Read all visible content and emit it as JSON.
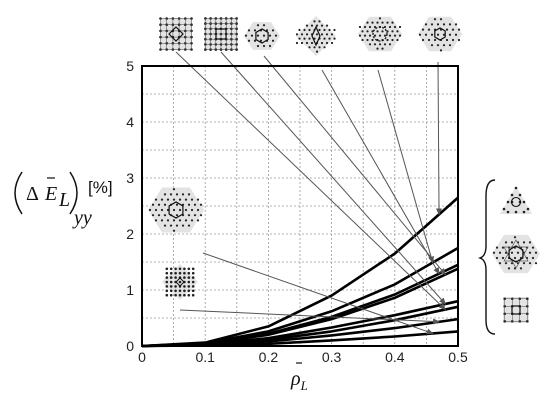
{
  "chart_data": {
    "type": "line",
    "xlabel": "ρ̄L",
    "ylabel": {
      "delta": "Δ",
      "E": "E",
      "sub": "L",
      "subsub": "yy",
      "unit": "[%]"
    },
    "xlim": [
      0,
      0.5
    ],
    "ylim": [
      0,
      5
    ],
    "x_ticks": [
      "0",
      "0.1",
      "0.2",
      "0.3",
      "0.4",
      "0.5"
    ],
    "y_ticks": [
      "0",
      "1",
      "2",
      "3",
      "4",
      "5"
    ],
    "grid": true,
    "x": [
      0,
      0.1,
      0.2,
      0.3,
      0.4,
      0.5
    ],
    "series": [
      {
        "values": [
          0,
          0.06,
          0.35,
          0.9,
          1.65,
          2.65
        ]
      },
      {
        "values": [
          0,
          0.05,
          0.26,
          0.62,
          1.1,
          1.75
        ]
      },
      {
        "values": [
          0,
          0.04,
          0.22,
          0.52,
          0.92,
          1.45
        ]
      },
      {
        "values": [
          0,
          0.04,
          0.2,
          0.48,
          0.86,
          1.38
        ]
      },
      {
        "values": [
          0,
          0.03,
          0.14,
          0.33,
          0.55,
          0.8
        ]
      },
      {
        "values": [
          0,
          0.02,
          0.11,
          0.26,
          0.46,
          0.7
        ]
      },
      {
        "values": [
          0,
          0.02,
          0.08,
          0.19,
          0.32,
          0.48
        ]
      },
      {
        "values": [
          0,
          0.01,
          0.04,
          0.1,
          0.17,
          0.26
        ]
      }
    ],
    "callouts": [
      {
        "icon": "square-grid-diamond-icon",
        "series": 5,
        "x": 0.48
      },
      {
        "icon": "square-grid-dense-icon",
        "series": 4,
        "x": 0.48
      },
      {
        "icon": "hexagon-ring-icon",
        "series": 3,
        "x": 0.48
      },
      {
        "icon": "triangular-diamond-icon",
        "series": 2,
        "x": 0.47
      },
      {
        "icon": "hexagonal-ring-icon",
        "series": 1,
        "x": 0.46
      },
      {
        "icon": "hexagonal-lattice-icon",
        "series": 0,
        "x": 0.47
      },
      {
        "icon": "hexagonal-lattice-large-icon",
        "series": 7,
        "x": 0.46
      },
      {
        "icon": "diamond-lattice-icon",
        "series": 6,
        "x": 0.47
      }
    ],
    "bracket_icons": [
      "triangle-ring-icon",
      "hexagonal-star-icon",
      "square-grid-small-icon"
    ]
  }
}
